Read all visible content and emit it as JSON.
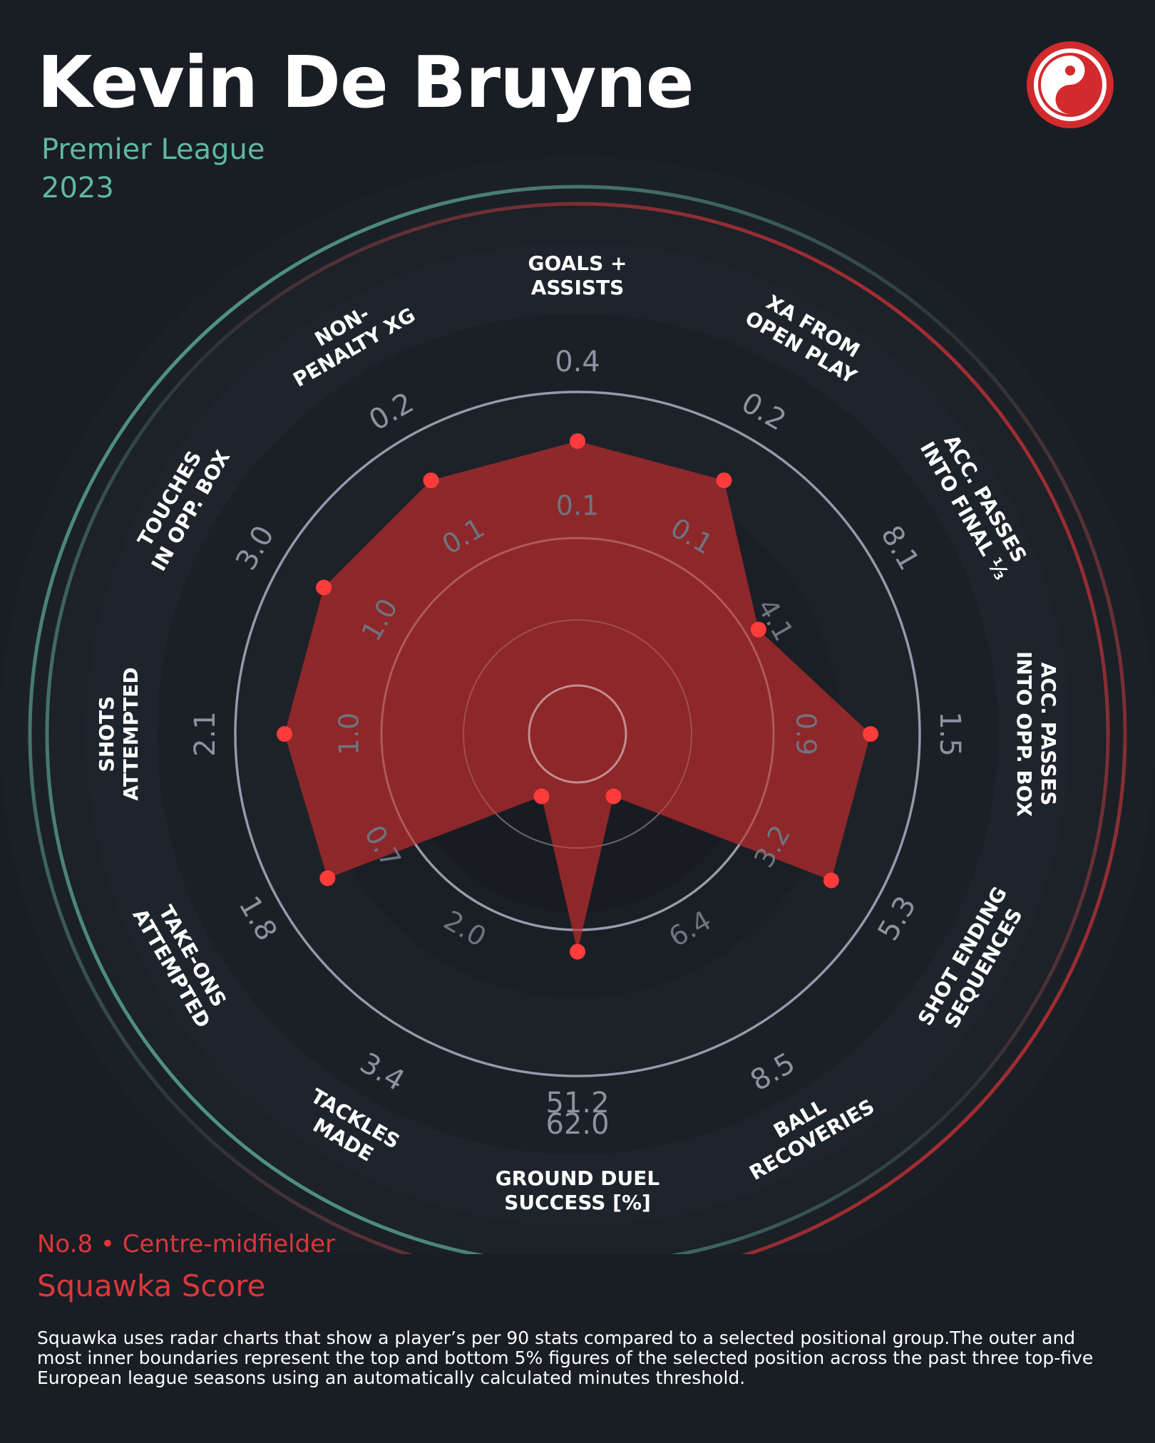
{
  "header": {
    "player_name": "Kevin De Bruyne",
    "league": "Premier League",
    "season": "2023",
    "logo_icon": "squawka-logo-icon"
  },
  "colors": {
    "background": "#191d24",
    "accent_red": "#d32a2e",
    "accent_teal": "#5fb8a3",
    "fill": "#a8292b"
  },
  "footer": {
    "player_tag": "No.8 • Centre-midfielder",
    "score_label": "Squawka Score",
    "disclaimer": "Squawka uses radar charts that show a player’s per 90 stats compared to a selected positional group.The outer and most inner boundaries represent the top and bottom 5% figures of the selected position across the past three top-five European league seasons using an automatically calculated minutes threshold."
  },
  "chart_data": {
    "type": "radar",
    "metrics": [
      {
        "label": [
          "GOALS +",
          "ASSISTS"
        ],
        "outer_tick": "",
        "mid_tick": "0.4",
        "inner_tick": "0.1",
        "value": 0.55
      },
      {
        "label": [
          "XA FROM",
          "OPEN PLAY"
        ],
        "outer_tick": "",
        "mid_tick": "0.2",
        "inner_tick": "0.1",
        "value": 0.55
      },
      {
        "label": [
          "ACC. PASSES",
          "INTO FINAL ⅓"
        ],
        "outer_tick": "",
        "mid_tick": "8.1",
        "inner_tick": "4.1",
        "value": 0.36
      },
      {
        "label": [
          "ACC. PASSES",
          "INTO OPP. BOX"
        ],
        "outer_tick": "",
        "mid_tick": "1.5",
        "inner_tick": "0.9",
        "value": 0.55
      },
      {
        "label": [
          "SHOT ENDING",
          "SEQUENCES"
        ],
        "outer_tick": "",
        "mid_tick": "5.3",
        "inner_tick": "3.2",
        "value": 0.55
      },
      {
        "label": [
          "BALL",
          "RECOVERIES"
        ],
        "outer_tick": "8.5",
        "mid_tick": "",
        "inner_tick": "6.4",
        "value": 0.05
      },
      {
        "label": [
          "GROUND DUEL",
          "SUCCESS [%]"
        ],
        "outer_tick": "62.0",
        "mid_tick": "51.2",
        "inner_tick": "",
        "value": 0.38
      },
      {
        "label": [
          "TACKLES",
          "MADE"
        ],
        "outer_tick": "3.4",
        "mid_tick": "",
        "inner_tick": "2.0",
        "value": 0.05
      },
      {
        "label": [
          "TAKE-ONS",
          "ATTEMPTED"
        ],
        "outer_tick": "",
        "mid_tick": "1.8",
        "inner_tick": "0.7",
        "value": 0.54
      },
      {
        "label": [
          "SHOTS",
          "ATTEMPTED"
        ],
        "outer_tick": "",
        "mid_tick": "2.1",
        "inner_tick": "1.0",
        "value": 0.55
      },
      {
        "label": [
          "TOUCHES",
          "IN OPP. BOX"
        ],
        "outer_tick": "",
        "mid_tick": "3.0",
        "inner_tick": "1.0",
        "value": 0.55
      },
      {
        "label": [
          "NON-",
          "PENALTY XG"
        ],
        "outer_tick": "",
        "mid_tick": "0.2",
        "inner_tick": "0.1",
        "value": 0.55
      }
    ]
  }
}
